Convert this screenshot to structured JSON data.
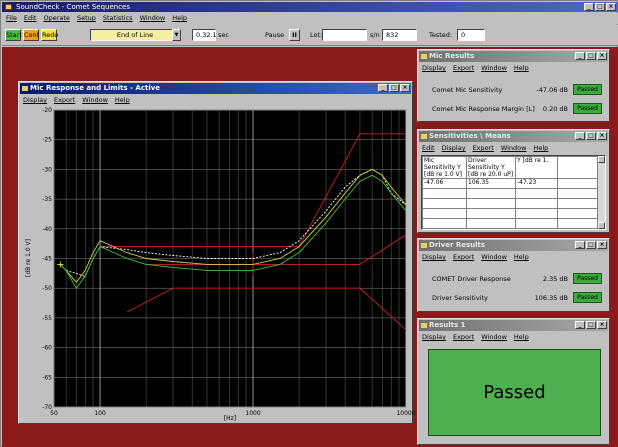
{
  "app": {
    "title": "SoundCheck - Comet Sequences"
  },
  "menu": [
    "File",
    "Edit",
    "Operate",
    "Setup",
    "Statistics",
    "Window",
    "Help"
  ],
  "toolbar": {
    "start": "Start",
    "cont": "Cont",
    "redo": "Redo",
    "sequence_step": "End of Line",
    "time_value": "0.32.1",
    "time_unit": "sec",
    "pause_label": "Pause",
    "pause_btn": "II",
    "lot_label": "Lot:",
    "lot_value": "",
    "sn_label": "s/n",
    "sn_value": "832",
    "tested_label": "Tested:",
    "tested_value": "0"
  },
  "colors": {
    "workspace": "#8b1a1a",
    "passed": "#3caa3c",
    "plot_bg": "#000000"
  },
  "mic_response": {
    "title": "Mic Response and Limits - Active",
    "menu": [
      "Display",
      "Export",
      "Window",
      "Help"
    ],
    "ylabel": "[dB re 1.0 V]",
    "xlabel": "[Hz]"
  },
  "mic_results": {
    "title": "Mic Results",
    "menu": [
      "Display",
      "Export",
      "Window",
      "Help"
    ],
    "rows": [
      {
        "label": "Comet Mic Sensitivity",
        "value": "-47.06 dB",
        "status": "Passed"
      },
      {
        "label": "Comet Mic Response Margin [L]",
        "value": "0.20 dB",
        "status": "Passed"
      }
    ]
  },
  "sensitivities": {
    "title": "Sensitivities \\ Means",
    "menu": [
      "Edit",
      "Display",
      "Export",
      "Window",
      "Help"
    ],
    "headers": [
      "Mic Sensitivity Y [dB re 1.0 V]",
      "Driver Sensitivity Y [dB re 20.0 uP]",
      "Y [dB re 1."
    ],
    "values": [
      "-47.06",
      "106.35",
      "-47.23"
    ]
  },
  "driver_results": {
    "title": "Driver Results",
    "menu": [
      "Display",
      "Export",
      "Window",
      "Help"
    ],
    "rows": [
      {
        "label": "COMET Driver Response",
        "value": "2.35 dB",
        "status": "Passed"
      },
      {
        "label": "Driver Sensitivity",
        "value": "106.35 dB",
        "status": "Passed"
      }
    ]
  },
  "results1": {
    "title": "Results 1",
    "menu": [
      "Display",
      "Export",
      "Window",
      "Help"
    ],
    "status": "Passed"
  },
  "chart_data": {
    "type": "line",
    "xscale": "log",
    "xlim": [
      50,
      10000
    ],
    "ylim": [
      -70,
      -20
    ],
    "x_ticks": [
      "50",
      "100",
      "1000",
      "10000"
    ],
    "y_ticks": [
      "-20",
      "-25",
      "-30",
      "-35",
      "-40",
      "-45",
      "-50",
      "-55",
      "-60",
      "-65",
      "-70"
    ],
    "xlabel": "[Hz]",
    "ylabel": "[dB re 1.0 V]",
    "grid": true,
    "series": [
      {
        "color": "#cc2020",
        "x": [
          100,
          1000,
          2000,
          5000,
          7000,
          10000
        ],
        "y": [
          -43,
          -43,
          -43,
          -24,
          -24,
          -24
        ]
      },
      {
        "color": "#cc2020",
        "x": [
          200,
          1000,
          5000,
          10000
        ],
        "y": [
          -46,
          -46,
          -46,
          -41
        ]
      },
      {
        "color": "#cc2020",
        "x": [
          150,
          300,
          1000,
          5000,
          10000
        ],
        "y": [
          -54,
          -50,
          -50,
          -50,
          -57
        ]
      },
      {
        "color": "#cc2020",
        "x": [
          1000,
          1000
        ],
        "y": [
          -44,
          -48
        ]
      },
      {
        "color": "#ffffff",
        "dash": true,
        "x": [
          60,
          80,
          90,
          100,
          150,
          200,
          300,
          500,
          1000,
          1500,
          2000,
          3000,
          4000,
          5000,
          6000,
          7000,
          8000,
          10000
        ],
        "y": [
          -47,
          -48,
          -45,
          -43,
          -43.5,
          -44,
          -44.5,
          -45,
          -45,
          -44,
          -42,
          -37,
          -33,
          -31,
          -30,
          -31,
          -34,
          -36
        ]
      },
      {
        "color": "#d0d040",
        "x": [
          55,
          60,
          70,
          80,
          90,
          100,
          150,
          200,
          300,
          500,
          1000,
          1500,
          2000,
          3000,
          4000,
          5000,
          6000,
          7000,
          8000,
          10000
        ],
        "y": [
          -46,
          -47,
          -49,
          -47,
          -44,
          -42,
          -44,
          -45,
          -45.5,
          -46,
          -46,
          -45,
          -43,
          -38,
          -34,
          -31,
          -30,
          -31,
          -33,
          -36
        ]
      },
      {
        "color": "#40c040",
        "x": [
          55,
          60,
          70,
          80,
          90,
          100,
          150,
          200,
          300,
          500,
          1000,
          1500,
          2000,
          3000,
          4000,
          5000,
          6000,
          7000,
          8000,
          10000
        ],
        "y": [
          -46,
          -47,
          -50,
          -48,
          -45,
          -43,
          -45,
          -46,
          -46.5,
          -47,
          -47,
          -46,
          -44,
          -39,
          -35,
          -32,
          -31,
          -32,
          -34,
          -37
        ]
      }
    ]
  }
}
